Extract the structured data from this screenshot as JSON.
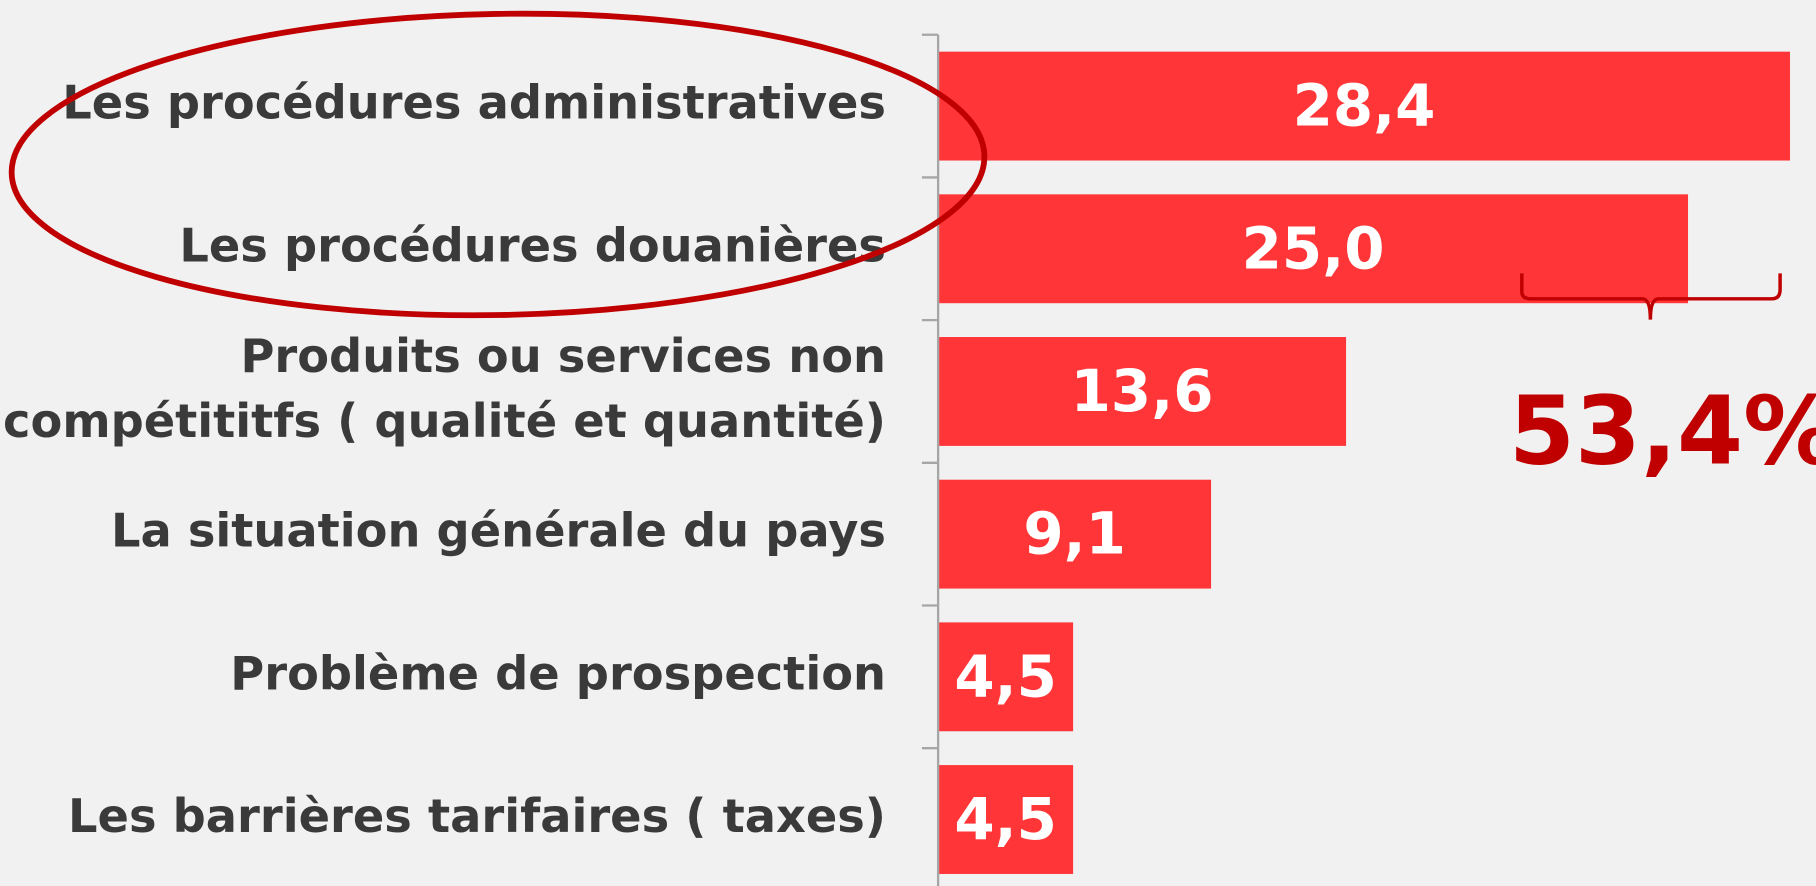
{
  "chart_data": {
    "type": "hbar",
    "categories": [
      "Les procédures administratives",
      "Les procédures douanières",
      "Produits ou services non\ncompétititfs ( qualité et quantité)",
      "La situation générale du pays",
      "Problème de prospection",
      "Les barrières tarifaires ( taxes)"
    ],
    "values": [
      28.4,
      25.0,
      13.6,
      9.1,
      4.5,
      4.5
    ],
    "value_labels": [
      "28,4",
      "25,0",
      "13,6",
      "9,1",
      "4,5",
      "4,5"
    ],
    "color": "#ff3538",
    "xlim": [
      0,
      30
    ],
    "annotation": "53,4%"
  }
}
